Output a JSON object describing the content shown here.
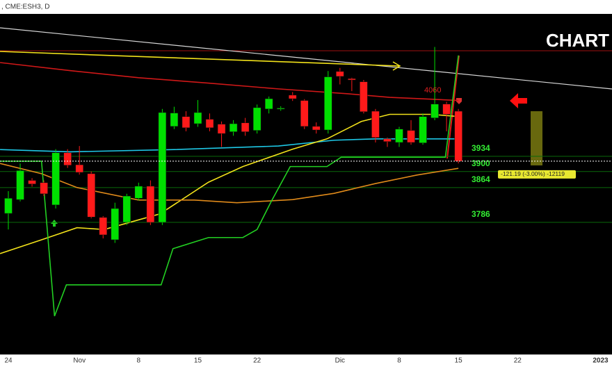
{
  "chart_data": {
    "type": "candlestick",
    "symbol": ", CME:ESH3, D",
    "watermark": "CHART",
    "change_label": "-121.19 (-3.00%) -12119",
    "annotation": 4060,
    "up_color": "#00e000",
    "down_color": "#ff1a1a",
    "ylim": [
      3490,
      4253
    ],
    "categories": [
      "24",
      null,
      null,
      null,
      null,
      null,
      "Nov",
      null,
      null,
      null,
      null,
      "8",
      null,
      null,
      null,
      null,
      "15",
      null,
      null,
      null,
      null,
      "22",
      null,
      null,
      null,
      null,
      null,
      null,
      "Dic",
      null,
      null,
      null,
      null,
      "8",
      null,
      null,
      null,
      null,
      "15",
      null,
      null,
      null,
      null,
      "22",
      null,
      null,
      null,
      null,
      null,
      null,
      "2023"
    ],
    "open": [
      3806,
      3837,
      3880,
      3875,
      3825,
      3942,
      3915,
      3895,
      3797,
      3747,
      3786,
      3840,
      3867,
      3786,
      4001,
      4023,
      4007,
      4017,
      4006,
      3989,
      4009,
      3992,
      4040,
      4040,
      4071,
      4059,
      4001,
      3993,
      4124,
      4108,
      4101,
      4035,
      3973,
      3965,
      3992,
      3964,
      4020,
      4051,
      4035,
      null,
      null,
      null,
      null,
      null,
      null,
      null,
      null,
      null,
      null,
      null,
      null
    ],
    "high": [
      3856,
      3918,
      3885,
      3880,
      3950,
      3950,
      3957,
      3900,
      3800,
      3830,
      3850,
      3875,
      3880,
      4040,
      4045,
      4035,
      4060,
      4030,
      4012,
      4015,
      4020,
      4050,
      4068,
      4046,
      4078,
      4062,
      4010,
      4125,
      4132,
      4110,
      4105,
      4040,
      3976,
      4000,
      4015,
      4030,
      4179,
      4056,
      4040,
      null,
      null,
      null,
      null,
      null,
      null,
      null,
      null,
      null,
      null,
      null,
      null
    ],
    "low": [
      3770,
      3833,
      3866,
      3845,
      3817,
      3908,
      3893,
      3795,
      3750,
      3740,
      3780,
      3835,
      3780,
      3780,
      3995,
      3990,
      4000,
      3990,
      3955,
      3980,
      3980,
      3985,
      4030,
      4036,
      4058,
      3995,
      3985,
      3985,
      4095,
      4080,
      4030,
      3965,
      3955,
      3955,
      3960,
      3960,
      4015,
      3990,
      3918,
      null,
      null,
      null,
      null,
      null,
      null,
      null,
      null,
      null,
      null,
      null,
      null
    ],
    "close": [
      3840,
      3902,
      3872,
      3850,
      3942,
      3914,
      3898,
      3798,
      3758,
      3817,
      3845,
      3867,
      3786,
      4032,
      4031,
      3998,
      4032,
      3998,
      3985,
      4007,
      3989,
      4043,
      4063,
      4042,
      4063,
      4001,
      3993,
      4112,
      4113,
      4105,
      4034,
      3976,
      3967,
      3995,
      3965,
      4023,
      4051,
      4028,
      3923,
      null,
      null,
      null,
      null,
      null,
      null,
      null,
      null,
      null,
      null,
      null,
      null
    ],
    "levels": [
      3934,
      3900,
      3864,
      3786
    ],
    "lines": [
      {
        "color": "#1ec8e6",
        "x": [
          -0.7,
          5.2,
          14,
          22.8,
          27.5,
          31,
          37,
          38
        ],
        "values": [
          3949,
          3944,
          3949,
          3957,
          3970,
          3973,
          3973,
          3973
        ]
      },
      {
        "color": "#f2e21a",
        "x": [
          -0.7,
          2.8,
          5.8,
          8.1,
          12.8,
          16.9,
          19.8,
          24,
          26.9,
          29.8,
          32.2,
          35.7,
          38
        ],
        "values": [
          3716,
          3747,
          3774,
          3770,
          3805,
          3876,
          3911,
          3950,
          3973,
          4012,
          4028,
          4028,
          4023
        ]
      },
      {
        "color": "#e08a1a",
        "x": [
          -0.7,
          2.8,
          5.8,
          11,
          15.7,
          19.3,
          24,
          27.5,
          31,
          34.5,
          38
        ],
        "values": [
          3918,
          3895,
          3864,
          3836,
          3836,
          3830,
          3837,
          3851,
          3873,
          3892,
          3907
        ]
      },
      {
        "color": "#d01818",
        "x": [
          -0.7,
          5.2,
          11,
          16.9,
          22.8,
          28.7,
          32.2,
          35.7,
          38
        ],
        "values": [
          4144,
          4126,
          4110,
          4098,
          4085,
          4074,
          4066,
          4062,
          4059
        ]
      },
      {
        "color": "#22d022",
        "x": [
          -0.7,
          2.8,
          3.9,
          4.9,
          12.9,
          13.9,
          16.9,
          19.8,
          21,
          22.2,
          23.8,
          26.9,
          28.1,
          36.9,
          38
        ],
        "values": [
          3923,
          3923,
          3576,
          3646,
          3646,
          3727,
          3752,
          3752,
          3770,
          3833,
          3911,
          3911,
          3932,
          3932,
          4160
        ]
      }
    ]
  }
}
